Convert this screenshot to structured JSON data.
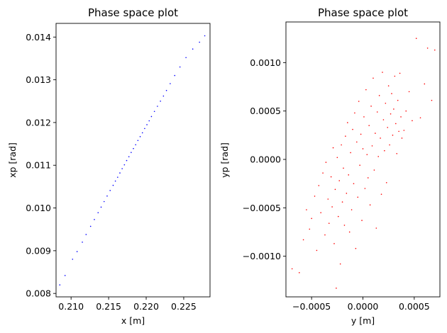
{
  "chart_data": [
    {
      "type": "scatter",
      "title": "Phase space plot",
      "xlabel": "x [m]",
      "ylabel": "xp [rad]",
      "xlim": [
        0.208,
        0.2285
      ],
      "ylim": [
        0.00792,
        0.01432
      ],
      "xticks": [
        0.21,
        0.215,
        0.22,
        0.225
      ],
      "xtick_labels": [
        "0.210",
        "0.215",
        "0.220",
        "0.225"
      ],
      "yticks": [
        0.008,
        0.009,
        0.01,
        0.011,
        0.012,
        0.013,
        0.014
      ],
      "ytick_labels": [
        "0.008",
        "0.009",
        "0.010",
        "0.011",
        "0.012",
        "0.013",
        "0.014"
      ],
      "color": "#0000ff",
      "grid": false,
      "series": [
        {
          "x": [
            0.2085,
            0.2092,
            0.2102,
            0.2108,
            0.2115,
            0.212,
            0.2126,
            0.2131,
            0.2136,
            0.214,
            0.2144,
            0.2148,
            0.2152,
            0.2156,
            0.2159,
            0.2162,
            0.2165,
            0.2168,
            0.2171,
            0.2174,
            0.2177,
            0.218,
            0.2183,
            0.2186,
            0.2189,
            0.2192,
            0.2195,
            0.2198,
            0.2201,
            0.2204,
            0.2207,
            0.2211,
            0.2215,
            0.2219,
            0.2223,
            0.2227,
            0.2232,
            0.2238,
            0.2245,
            0.2253,
            0.2262,
            0.2271,
            0.2278
          ],
          "y": [
            0.0082,
            0.00842,
            0.0088,
            0.00898,
            0.0092,
            0.00938,
            0.00957,
            0.00973,
            0.00989,
            0.01002,
            0.01015,
            0.01028,
            0.01041,
            0.01053,
            0.01063,
            0.01072,
            0.01082,
            0.01092,
            0.01101,
            0.01111,
            0.0112,
            0.0113,
            0.01139,
            0.01148,
            0.01158,
            0.01167,
            0.01176,
            0.01186,
            0.01195,
            0.01204,
            0.01214,
            0.01226,
            0.01238,
            0.0125,
            0.01262,
            0.01275,
            0.01291,
            0.0131,
            0.0133,
            0.01352,
            0.01372,
            0.01388,
            0.01403
          ]
        }
      ]
    },
    {
      "type": "scatter",
      "title": "Phase space plot",
      "xlabel": "y [m]",
      "ylabel": "yp [rad]",
      "xlim": [
        -0.00075,
        0.00075
      ],
      "ylim": [
        -0.00142,
        0.00142
      ],
      "xticks": [
        -0.0005,
        0.0,
        0.0005
      ],
      "xtick_labels": [
        "−0.0005",
        "0.0000",
        "0.0005"
      ],
      "yticks": [
        -0.001,
        -0.0005,
        0.0,
        0.0005,
        0.001
      ],
      "ytick_labels": [
        "−0.0010",
        "−0.0005",
        "0.0000",
        "0.0005",
        "0.0010"
      ],
      "color": "#ff0000",
      "grid": false,
      "series": [
        {
          "x": [
            -0.00069,
            -0.00062,
            -0.00058,
            -0.00055,
            -0.00052,
            -0.0005,
            -0.00047,
            -0.00045,
            -0.00043,
            -0.00041,
            -0.00039,
            -0.00037,
            -0.00036,
            -0.00034,
            -0.00033,
            -0.00031,
            -0.0003,
            -0.00029,
            -0.00028,
            -0.00027,
            -0.00026,
            -0.00025,
            -0.00024,
            -0.00023,
            -0.00022,
            -0.00021,
            -0.0002,
            -0.00019,
            -0.00018,
            -0.00017,
            -0.00016,
            -0.00015,
            -0.00014,
            -0.00013,
            -0.00012,
            -0.00011,
            -0.0001,
            -9e-05,
            -8e-05,
            -7e-05,
            -6e-05,
            -5e-05,
            -4e-05,
            -3e-05,
            -2e-05,
            -1e-05,
            0.0,
            1e-05,
            2e-05,
            3e-05,
            4e-05,
            5e-05,
            6e-05,
            7e-05,
            8e-05,
            9e-05,
            0.0001,
            0.00011,
            0.00012,
            0.00013,
            0.00014,
            0.00015,
            0.00016,
            0.00017,
            0.00018,
            0.00019,
            0.0002,
            0.00021,
            0.00022,
            0.00023,
            0.00024,
            0.00025,
            0.00026,
            0.00027,
            0.00028,
            0.00029,
            0.0003,
            0.00031,
            0.00032,
            0.00033,
            0.00034,
            0.00035,
            0.00036,
            0.00037,
            0.00038,
            0.0004,
            0.00042,
            0.00045,
            0.00048,
            0.00052,
            0.00056,
            0.0006,
            0.00063,
            0.00067,
            0.0007
          ],
          "y": [
            -0.00113,
            -0.00117,
            -0.00083,
            -0.00052,
            -0.00072,
            -0.00061,
            -0.00038,
            -0.00094,
            -0.00027,
            -0.00055,
            -0.00014,
            -0.00078,
            -3e-05,
            -0.00041,
            -0.00066,
            -0.00018,
            -0.00049,
            0.00012,
            -0.00087,
            -0.00031,
            -0.00133,
            2e-05,
            -0.00059,
            -0.00022,
            -0.00108,
            0.00015,
            -0.00044,
            -9e-05,
            -0.00068,
            0.00024,
            -0.00035,
            0.00038,
            -0.00016,
            -0.00075,
            7e-05,
            -0.00052,
            0.00031,
            -0.00025,
            0.00048,
            -0.00092,
            0.00018,
            -0.00039,
            0.0006,
            -6e-05,
            0.00026,
            -0.00063,
            0.00011,
            0.00044,
            -0.0003,
            0.00072,
            5e-05,
            -0.00019,
            0.00035,
            -0.00047,
            0.00055,
            0.00014,
            0.00084,
            -0.00011,
            0.00027,
            -0.00071,
            0.00049,
            3e-05,
            0.00066,
            0.00022,
            -0.00036,
            0.0009,
            0.00041,
            9e-05,
            0.00058,
            -0.00024,
            0.00033,
            0.00076,
            0.00015,
            0.00047,
            0.00068,
            0.00025,
            0.00052,
            0.00086,
            0.00037,
            6e-05,
            0.00061,
            0.00029,
            0.00089,
            0.00044,
            0.00022,
            0.0003,
            0.0005,
            0.0007,
            0.0004,
            0.00125,
            0.00043,
            0.00078,
            0.00115,
            0.00061,
            0.00113
          ]
        }
      ]
    }
  ]
}
